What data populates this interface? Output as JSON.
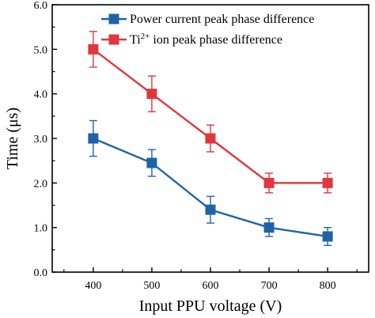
{
  "chart_data": {
    "type": "line",
    "title": "",
    "xlabel": "Input PPU voltage (V)",
    "ylabel": "Time (μs)",
    "x": [
      400,
      500,
      600,
      700,
      800
    ],
    "x_ticks": [
      "400",
      "500",
      "600",
      "700",
      "800"
    ],
    "y_ticks": [
      "0.0",
      "1.0",
      "2.0",
      "3.0",
      "4.0",
      "5.0",
      "6.0"
    ],
    "xlim": [
      330,
      870
    ],
    "ylim": [
      0,
      6
    ],
    "grid": false,
    "legend_placement": "top-right",
    "series": [
      {
        "name_prefix": "Power current peak phase difference",
        "name_sup": "",
        "name_suffix": "",
        "color": "#1f63a7",
        "marker": "square",
        "values": [
          3.0,
          2.45,
          1.4,
          1.0,
          0.8
        ],
        "errors": [
          0.4,
          0.3,
          0.3,
          0.2,
          0.2
        ]
      },
      {
        "name_prefix": "Ti",
        "name_sup": "2+",
        "name_suffix": " ion peak phase difference",
        "color": "#e0373c",
        "marker": "square",
        "values": [
          5.0,
          4.0,
          3.0,
          2.0,
          2.0
        ],
        "errors": [
          0.4,
          0.4,
          0.3,
          0.22,
          0.22
        ]
      }
    ]
  }
}
